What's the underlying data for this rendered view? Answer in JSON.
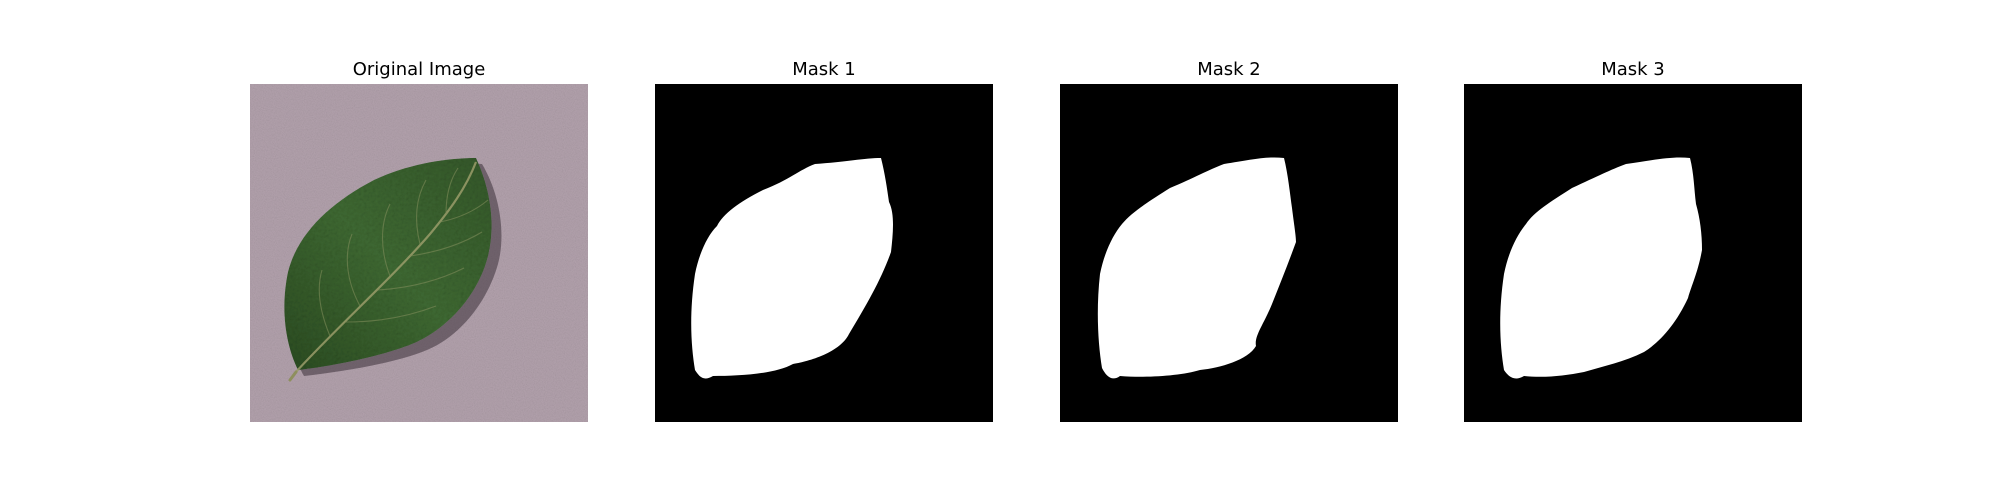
{
  "figure": {
    "panels": [
      {
        "title": "Original Image"
      },
      {
        "title": "Mask 1"
      },
      {
        "title": "Mask 2"
      },
      {
        "title": "Mask 3"
      }
    ]
  }
}
